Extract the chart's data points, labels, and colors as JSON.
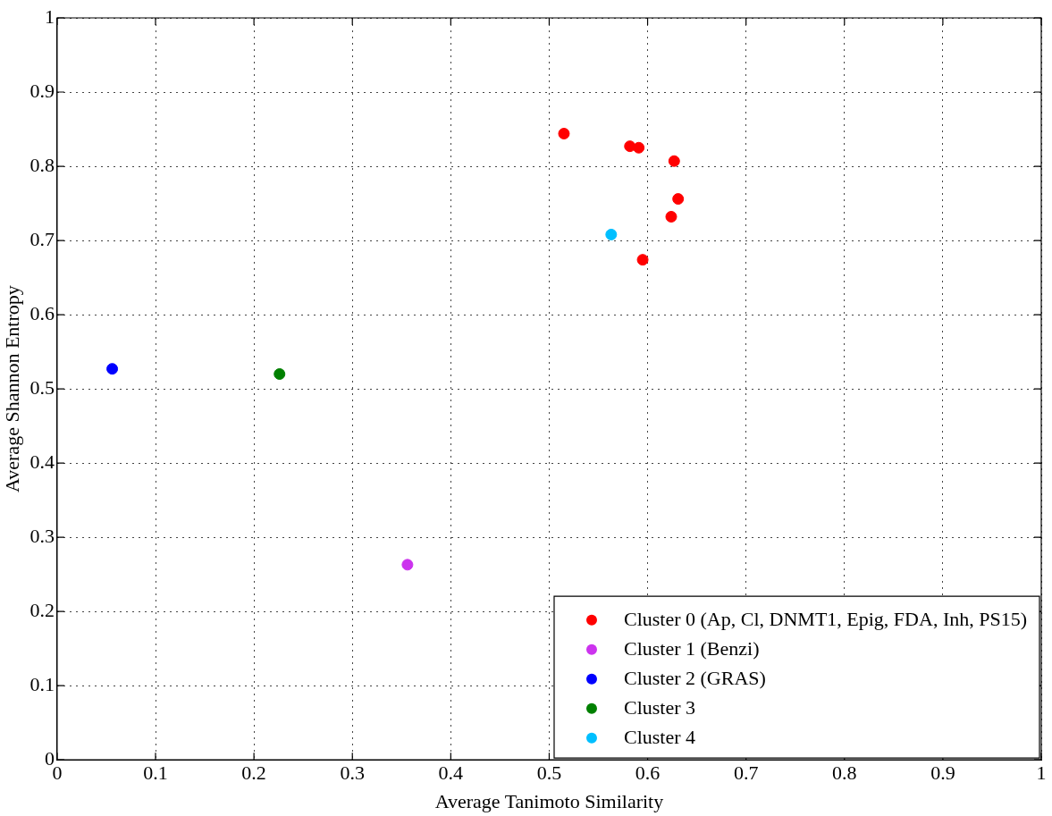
{
  "chart_data": {
    "type": "scatter",
    "xlabel": "Average Tanimoto Similarity",
    "ylabel": "Average Shannon Entropy",
    "xlim": [
      0,
      1
    ],
    "ylim": [
      0,
      1
    ],
    "xticks": [
      0,
      0.1,
      0.2,
      0.3,
      0.4,
      0.5,
      0.6,
      0.7,
      0.8,
      0.9,
      1
    ],
    "yticks": [
      0,
      0.1,
      0.2,
      0.3,
      0.4,
      0.5,
      0.6,
      0.7,
      0.8,
      0.9,
      1
    ],
    "grid": true,
    "legend": "bottom right",
    "marker": "circle",
    "series": [
      {
        "name": "Cluster 0 (Ap, Cl, DNMT1, Epig, FDA, Inh, PS15)",
        "color": "#ff0000",
        "x": [
          0.515,
          0.582,
          0.591,
          0.627,
          0.631,
          0.624,
          0.595
        ],
        "values": [
          0.844,
          0.827,
          0.825,
          0.807,
          0.756,
          0.732,
          0.674
        ]
      },
      {
        "name": "Cluster 1 (Benzi)",
        "color": "#cc33ee",
        "x": [
          0.356
        ],
        "values": [
          0.263
        ]
      },
      {
        "name": "Cluster 2 (GRAS)",
        "color": "#0000ff",
        "x": [
          0.056
        ],
        "values": [
          0.527
        ]
      },
      {
        "name": "Cluster 3",
        "color": "#008000",
        "x": [
          0.226
        ],
        "values": [
          0.52
        ]
      },
      {
        "name": "Cluster 4",
        "color": "#00bfff",
        "x": [
          0.563
        ],
        "values": [
          0.708
        ]
      }
    ]
  }
}
